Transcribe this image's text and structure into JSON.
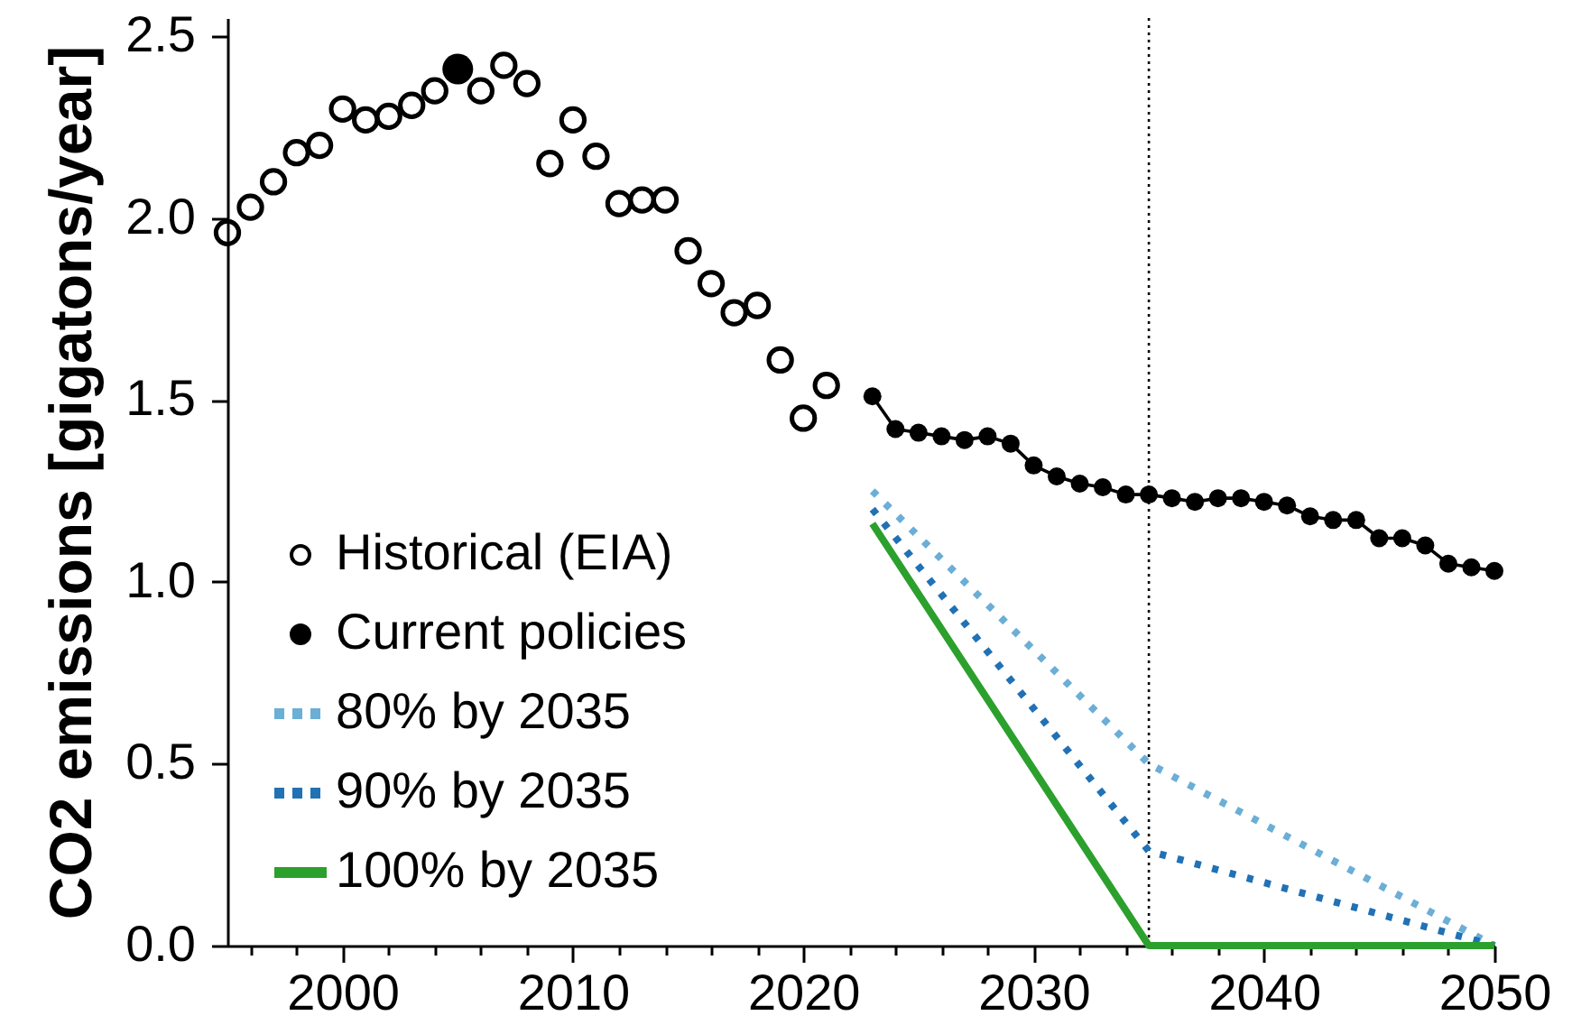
{
  "chart_data": {
    "type": "line",
    "ylabel": "CO2 emissions [gigatons/year]",
    "xlim": [
      1995,
      2050
    ],
    "xticks": [
      {
        "value": 1996,
        "label": null
      },
      {
        "value": 1998,
        "label": null
      },
      2000,
      {
        "value": 2002,
        "label": null
      },
      {
        "value": 2004,
        "label": null
      },
      {
        "value": 2006,
        "label": null
      },
      {
        "value": 2008,
        "label": null
      },
      2010,
      {
        "value": 2012,
        "label": null
      },
      {
        "value": 2014,
        "label": null
      },
      {
        "value": 2016,
        "label": null
      },
      {
        "value": 2018,
        "label": null
      },
      2020,
      {
        "value": 2022,
        "label": null
      },
      {
        "value": 2024,
        "label": null
      },
      {
        "value": 2026,
        "label": null
      },
      {
        "value": 2028,
        "label": null
      },
      2030,
      {
        "value": 2032,
        "label": null
      },
      {
        "value": 2034,
        "label": null
      },
      {
        "value": 2036,
        "label": null
      },
      {
        "value": 2038,
        "label": null
      },
      2040,
      {
        "value": 2042,
        "label": null
      },
      {
        "value": 2044,
        "label": null
      },
      {
        "value": 2046,
        "label": null
      },
      {
        "value": 2048,
        "label": null
      },
      2050
    ],
    "ylim": [
      0,
      2.55
    ],
    "yticks": [
      {
        "value": 0,
        "label": "0.0"
      },
      0.5,
      {
        "value": 1,
        "label": "1.0"
      },
      1.5,
      {
        "value": 2,
        "label": "2.0"
      },
      2.5
    ],
    "legend": "bottom left",
    "ref_lines": [
      {
        "axis": "x",
        "value": 2035,
        "color": "#000000",
        "line_style": "dotted"
      }
    ],
    "series": [
      {
        "name": "Historical (EIA)",
        "type": "scatter",
        "marker": "circle",
        "color": "#000000",
        "x": [
          1995,
          1996,
          1997,
          1998,
          1999,
          2000,
          2001,
          2002,
          2003,
          2004,
          2005,
          2006,
          2007,
          2008,
          2009,
          2010,
          2011,
          2012,
          2013,
          2014,
          2015,
          2016,
          2017,
          2018,
          2019,
          2020,
          2021
        ],
        "values": [
          1.96,
          2.03,
          2.1,
          2.18,
          2.2,
          2.3,
          2.27,
          2.28,
          2.31,
          2.35,
          null,
          2.35,
          2.42,
          2.37,
          2.15,
          2.27,
          2.17,
          2.04,
          2.05,
          2.05,
          1.91,
          1.82,
          1.74,
          1.76,
          1.61,
          1.45,
          1.54
        ]
      },
      {
        "type": "bubble",
        "color": "#000000",
        "x": [
          2005
        ],
        "values": [
          2.41
        ],
        "sizes": [
          1
        ]
      },
      {
        "name": "Current policies",
        "marker": "circle",
        "line_style": "solid",
        "color": "#000000",
        "x": [
          2023,
          2024,
          2025,
          2026,
          2027,
          2028,
          2029,
          2030,
          2031,
          2032,
          2033,
          2034,
          2035,
          2036,
          2037,
          2038,
          2039,
          2040,
          2041,
          2042,
          2043,
          2044,
          2045,
          2046,
          2047,
          2048,
          2049,
          2050
        ],
        "values": [
          1.51,
          1.42,
          1.41,
          1.4,
          1.39,
          1.4,
          1.38,
          1.32,
          1.29,
          1.27,
          1.26,
          1.24,
          1.24,
          1.23,
          1.22,
          1.23,
          1.23,
          1.22,
          1.21,
          1.18,
          1.17,
          1.17,
          1.12,
          1.12,
          1.1,
          1.05,
          1.04,
          1.03
        ]
      },
      {
        "name": "80% by 2035",
        "line_style": "dotted",
        "color": "#6baed6",
        "x": [
          2023,
          2035,
          2050
        ],
        "values": [
          1.25,
          0.5,
          0
        ]
      },
      {
        "name": "90% by 2035",
        "line_style": "dotted",
        "color": "#2171b5",
        "x": [
          2023,
          2035,
          2050
        ],
        "values": [
          1.2,
          0.26,
          0
        ]
      },
      {
        "name": "100% by 2035",
        "line_style": "solid",
        "color": "#2ca02c",
        "x": [
          2023,
          2035,
          2050
        ],
        "values": [
          1.16,
          0,
          0
        ]
      }
    ]
  }
}
